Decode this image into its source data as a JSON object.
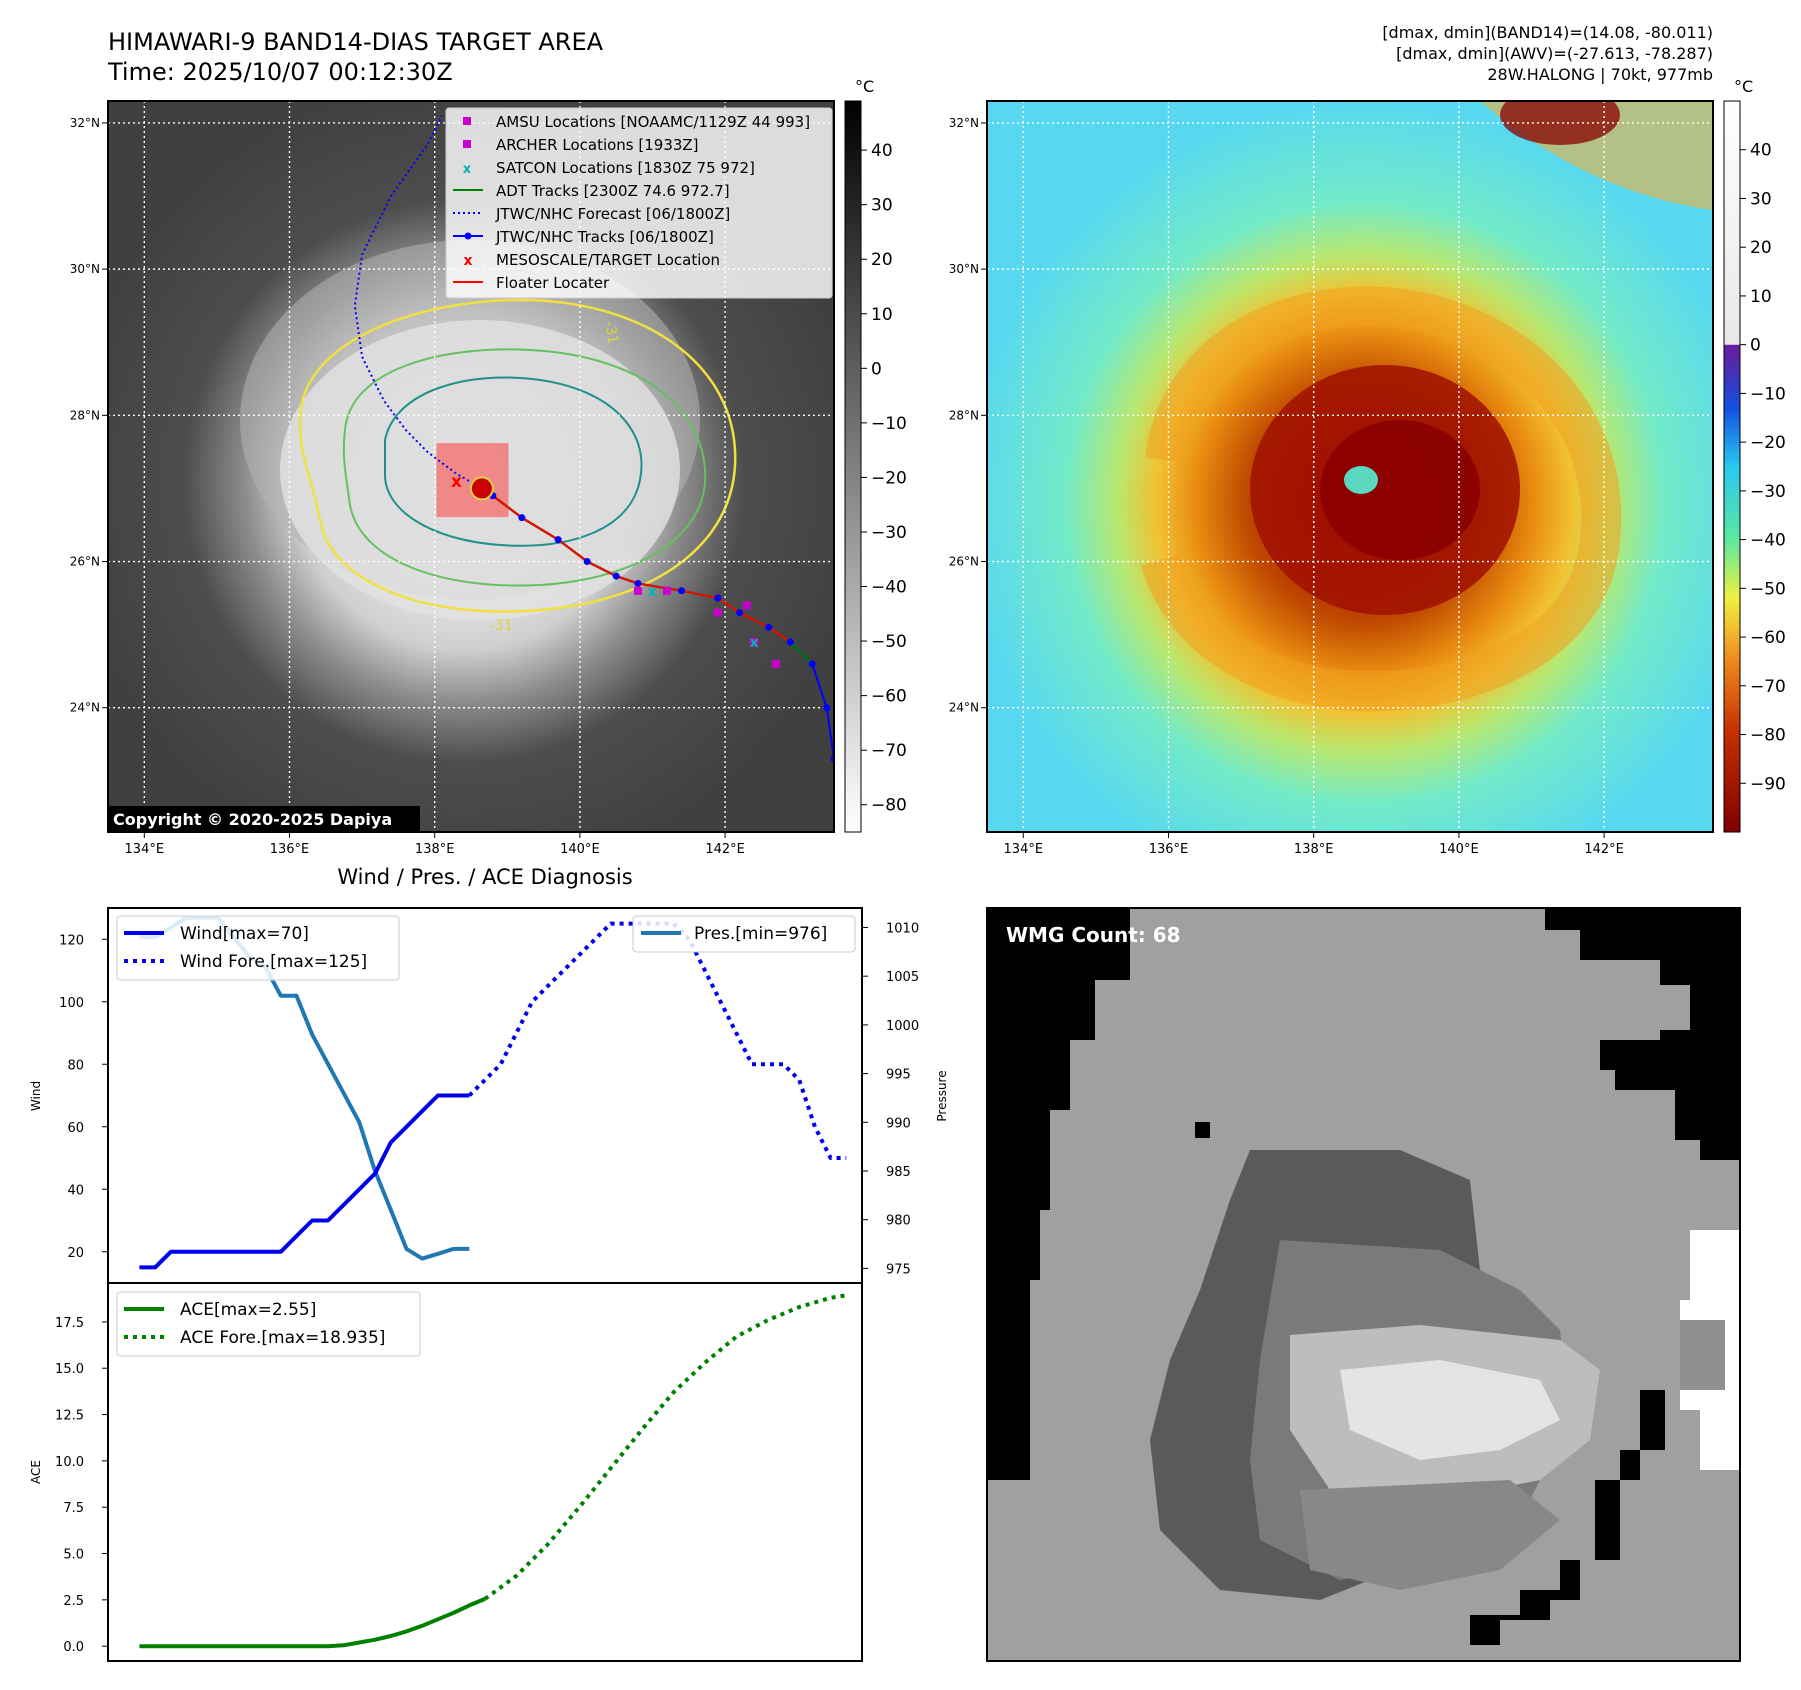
{
  "title": {
    "line1": "HIMAWARI-9 BAND14-DIAS TARGET AREA",
    "line2": "Time: 2025/10/07 00:12:30Z"
  },
  "info": {
    "line1": "[dmax, dmin](BAND14)=(14.08, -80.011)",
    "line2": "[dmax, dmin](AWV)=(-27.613, -78.287)",
    "line3": "28W.HALONG | 70kt, 977mb"
  },
  "copyright": "Copyright © 2020-2025 Dapiya",
  "map": {
    "lon_ticks": [
      "134°E",
      "136°E",
      "138°E",
      "140°E",
      "142°E"
    ],
    "lat_ticks": [
      "32°N",
      "30°N",
      "28°N",
      "26°N",
      "24°N"
    ],
    "lon_range": [
      133.5,
      143.5
    ],
    "lat_range": [
      22.3,
      32.3
    ],
    "contour_label": "-31",
    "legend": [
      {
        "label": "AMSU Locations [NOAAMC/1129Z 44 993]",
        "color": "#cc00cc"
      },
      {
        "label": "ARCHER Locations [1933Z]",
        "color": "#cc00cc"
      },
      {
        "label": "SATCON Locations [1830Z 75 972]",
        "color": "#00b3b3"
      },
      {
        "label": "ADT Tracks [2300Z 74.6 972.7]",
        "color": "#008000"
      },
      {
        "label": "JTWC/NHC Forecast [06/1800Z]",
        "color": "#0000ff"
      },
      {
        "label": "JTWC/NHC Tracks [06/1800Z]",
        "color": "#0000ff"
      },
      {
        "label": "MESOSCALE/TARGET Location",
        "color": "#ff0000"
      },
      {
        "label": "Floater Locater",
        "color": "#ff0000"
      }
    ],
    "jtwc_track": [
      [
        143.5,
        23.3
      ],
      [
        143.4,
        24.0
      ],
      [
        143.2,
        24.6
      ],
      [
        142.9,
        24.9
      ],
      [
        142.6,
        25.1
      ],
      [
        142.2,
        25.3
      ],
      [
        141.9,
        25.5
      ],
      [
        141.4,
        25.6
      ],
      [
        140.8,
        25.7
      ],
      [
        140.5,
        25.8
      ],
      [
        140.1,
        26.0
      ],
      [
        139.7,
        26.3
      ],
      [
        139.2,
        26.6
      ],
      [
        138.8,
        26.9
      ],
      [
        138.65,
        27.0
      ]
    ],
    "jtwc_forecast": [
      [
        138.65,
        27.0
      ],
      [
        138.3,
        27.2
      ],
      [
        137.9,
        27.5
      ],
      [
        137.6,
        27.8
      ],
      [
        137.3,
        28.2
      ],
      [
        137.0,
        28.8
      ],
      [
        136.9,
        29.5
      ],
      [
        137.0,
        30.2
      ],
      [
        137.4,
        31.0
      ],
      [
        137.9,
        31.7
      ],
      [
        138.1,
        32.1
      ]
    ],
    "target_location": [
      138.3,
      27.1
    ],
    "amsu_locations": [
      [
        140.8,
        25.6
      ],
      [
        141.2,
        25.6
      ],
      [
        141.9,
        25.3
      ],
      [
        142.3,
        25.4
      ],
      [
        142.4,
        24.9
      ],
      [
        142.7,
        24.6
      ]
    ],
    "satcon_locations": [
      [
        141.0,
        25.6
      ],
      [
        142.4,
        24.9
      ]
    ]
  },
  "colorbar_left": {
    "unit": "°C",
    "ticks": [
      "40",
      "30",
      "20",
      "10",
      "0",
      "−10",
      "−20",
      "−30",
      "−40",
      "−50",
      "−60",
      "−70",
      "−80"
    ],
    "range": [
      -85,
      49
    ]
  },
  "colorbar_right": {
    "unit": "°C",
    "ticks": [
      "40",
      "30",
      "20",
      "10",
      "0",
      "−10",
      "−20",
      "−30",
      "−40",
      "−50",
      "−60",
      "−70",
      "−80",
      "−90"
    ],
    "range": [
      -100,
      50
    ]
  },
  "chart_data": [
    {
      "type": "line",
      "title": "Wind / Pres. / ACE Diagnosis",
      "xlabel": "",
      "ylabel": "Wind",
      "ylabel_right": "Pressure",
      "ylim": [
        10,
        130
      ],
      "ylim_right": [
        973.5,
        1012
      ],
      "xlim": [
        -2,
        46
      ],
      "yticks": [
        20,
        40,
        60,
        80,
        100,
        120
      ],
      "yticks_right": [
        975,
        980,
        985,
        990,
        995,
        1000,
        1005,
        1010
      ],
      "series": [
        {
          "name": "Wind[max=70]",
          "style": "solid",
          "color": "#0000ee",
          "axis": "left",
          "x": [
            0,
            1,
            2,
            3,
            4,
            5,
            6,
            7,
            8,
            9,
            10,
            11,
            12,
            13,
            14,
            15,
            16,
            17,
            18,
            19,
            20,
            21,
            22,
            23,
            24,
            25
          ],
          "values": [
            15,
            15,
            20,
            20,
            20,
            20,
            20,
            20,
            20,
            20,
            25,
            30,
            30,
            35,
            40,
            45,
            55,
            60,
            65,
            70,
            70,
            70,
            null,
            null,
            null,
            null
          ]
        },
        {
          "name": "Wind Fore.[max=125]",
          "style": "dotted",
          "color": "#0000ee",
          "axis": "left",
          "x": [
            21,
            22,
            23,
            24,
            25,
            26,
            27,
            28,
            29,
            30,
            31,
            32,
            33,
            34,
            35,
            36,
            37,
            38,
            39,
            40,
            41,
            42,
            43,
            44,
            45
          ],
          "values": [
            70,
            75,
            80,
            90,
            100,
            105,
            110,
            115,
            120,
            125,
            125,
            125,
            125,
            125,
            120,
            110,
            100,
            90,
            80,
            80,
            80,
            75,
            60,
            50,
            50
          ]
        },
        {
          "name": "Pres.[min=976]",
          "style": "solid",
          "color": "#1f77b4",
          "axis": "right",
          "x": [
            0,
            1,
            2,
            3,
            4,
            5,
            6,
            7,
            8,
            9,
            10,
            11,
            12,
            13,
            14,
            15,
            16,
            17,
            18,
            19,
            20,
            21
          ],
          "values": [
            1009,
            1009,
            1010,
            1011,
            1011,
            1011,
            1009,
            1007,
            1006,
            1003,
            1003,
            999,
            996,
            993,
            990,
            985,
            981,
            977,
            976,
            976.5,
            977,
            977
          ]
        }
      ]
    },
    {
      "type": "line",
      "title": "",
      "xlabel": "",
      "ylabel": "ACE",
      "ylim": [
        -0.8,
        19.6
      ],
      "xlim": [
        -2,
        46
      ],
      "yticks": [
        0.0,
        2.5,
        5.0,
        7.5,
        10.0,
        12.5,
        15.0,
        17.5
      ],
      "ytick_labels": [
        "0.0",
        "2.5",
        "5.0",
        "7.5",
        "10.0",
        "12.5",
        "15.0",
        "17.5"
      ],
      "series": [
        {
          "name": "ACE[max=2.55]",
          "style": "solid",
          "color": "#008000",
          "x": [
            0,
            4,
            8,
            12,
            13,
            14,
            15,
            16,
            17,
            18,
            19,
            20,
            21,
            22
          ],
          "values": [
            0,
            0,
            0,
            0,
            0.05,
            0.2,
            0.35,
            0.55,
            0.8,
            1.1,
            1.45,
            1.8,
            2.2,
            2.55
          ]
        },
        {
          "name": "ACE Fore.[max=18.935]",
          "style": "dotted",
          "color": "#008000",
          "x": [
            22,
            24,
            26,
            28,
            30,
            32,
            34,
            36,
            38,
            40,
            42,
            44,
            45
          ],
          "values": [
            2.55,
            3.8,
            5.5,
            7.5,
            9.6,
            11.7,
            13.7,
            15.3,
            16.7,
            17.6,
            18.3,
            18.8,
            18.935
          ]
        }
      ]
    }
  ],
  "wmg": {
    "label": "WMG Count: 68"
  }
}
